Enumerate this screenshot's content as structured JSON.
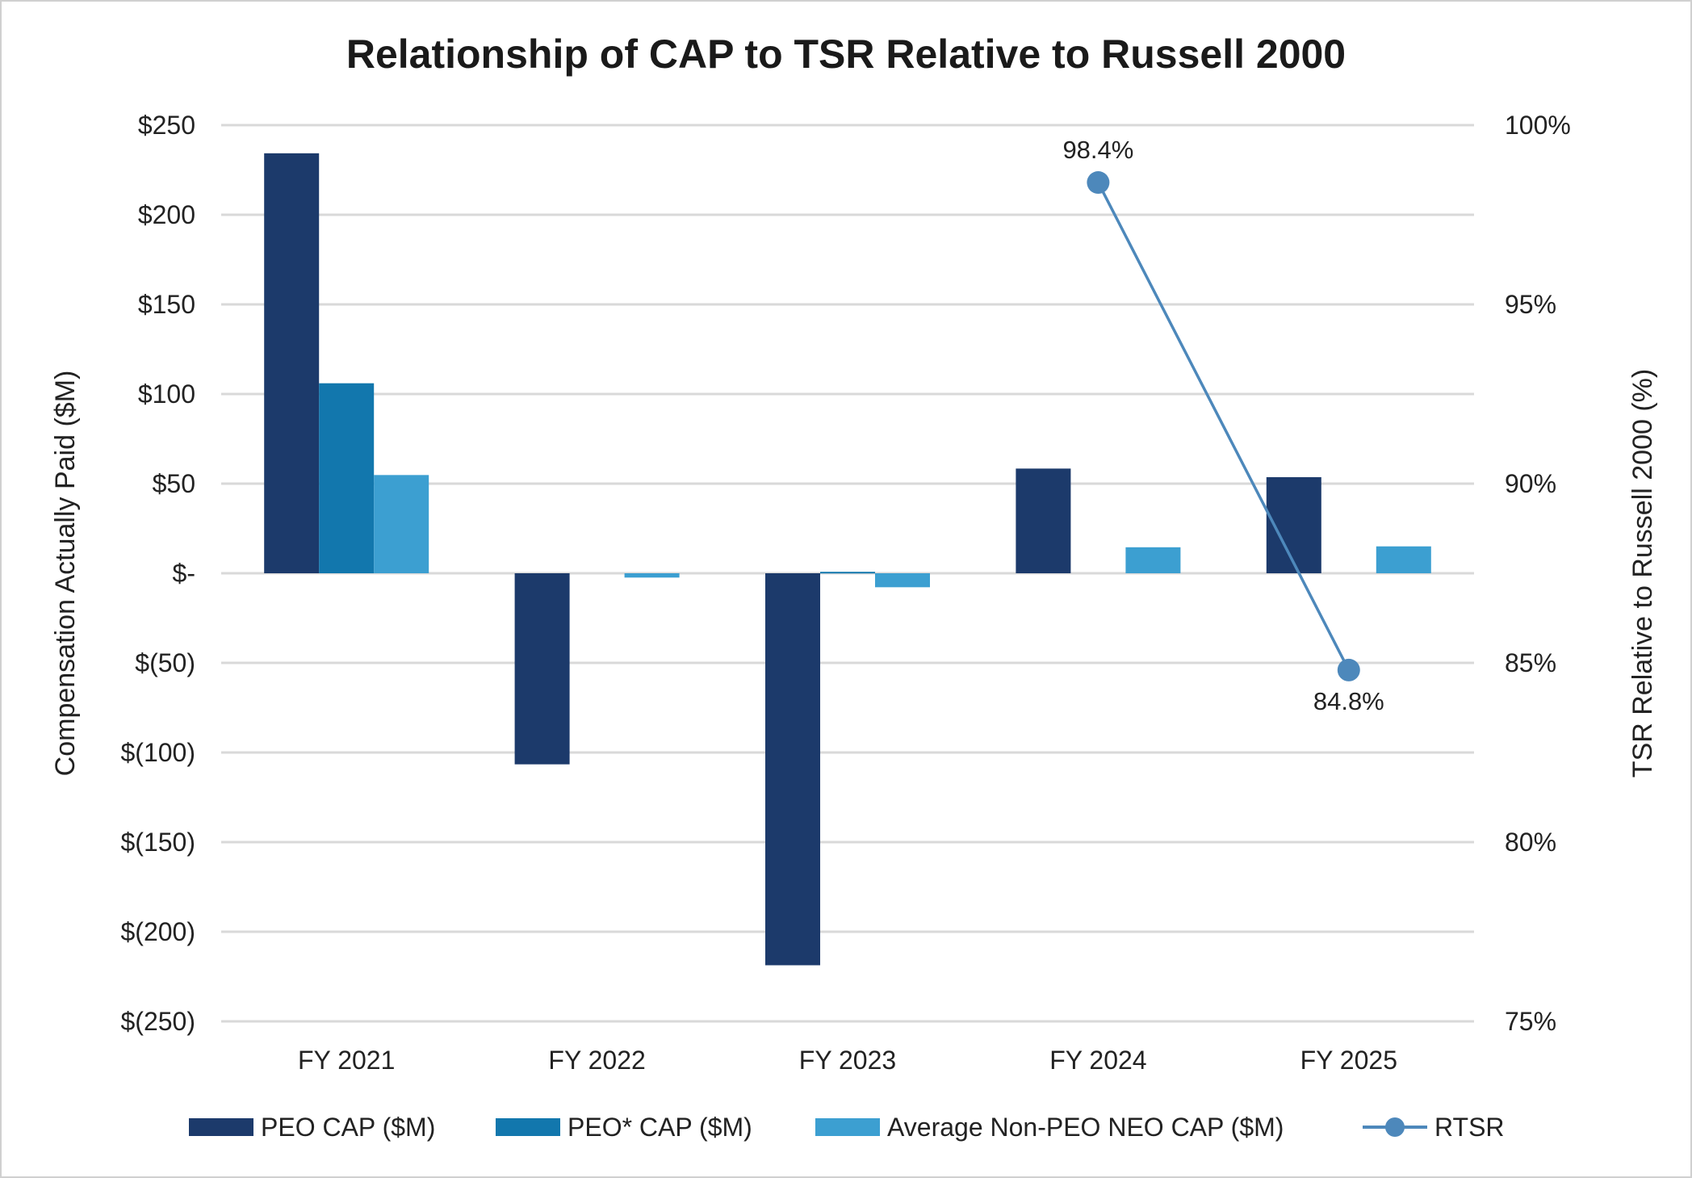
{
  "chart_data": {
    "type": "bar",
    "title": "Relationship of CAP to TSR Relative to Russell 2000",
    "categories": [
      "FY 2021",
      "FY 2022",
      "FY 2023",
      "FY 2024",
      "FY 2025"
    ],
    "ylabel": "Compensation Actually Paid ($M)",
    "y2label": "TSR Relative to Russell 2000 (%)",
    "ylim": [
      -250,
      250
    ],
    "y2lim": [
      75,
      100
    ],
    "yticks": [
      "$250",
      "$200",
      "$150",
      "$100",
      "$50",
      "$-",
      "$(50)",
      "$(100)",
      "$(150)",
      "$(200)",
      "$(250)"
    ],
    "y2ticks": [
      "100%",
      "95%",
      "90%",
      "85%",
      "80%",
      "75%"
    ],
    "grid": true,
    "legend_position": "bottom",
    "series": [
      {
        "name": "PEO CAP ($M)",
        "kind": "bar",
        "color": "#1c3a6b",
        "values": [
          234.3,
          -106.6,
          -218.7,
          58.4,
          53.6
        ]
      },
      {
        "name": "PEO* CAP ($M)",
        "kind": "bar",
        "color": "#1277ad",
        "values": [
          106.0,
          null,
          0.8,
          null,
          null
        ]
      },
      {
        "name": "Average Non-PEO NEO CAP ($M)",
        "kind": "bar",
        "color": "#3c9fd1",
        "values": [
          54.8,
          -2.4,
          -7.8,
          14.5,
          15.0
        ]
      },
      {
        "name": "RTSR",
        "kind": "line",
        "axis": "right",
        "color": "#4d88bb",
        "values": [
          null,
          null,
          null,
          98.4,
          84.8
        ],
        "labels": [
          null,
          null,
          null,
          "98.4%",
          "84.8%"
        ]
      }
    ]
  }
}
